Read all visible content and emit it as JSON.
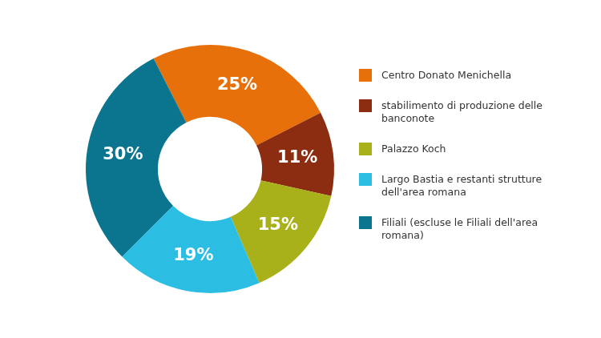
{
  "chart_data": {
    "type": "doughnut",
    "categories": [
      "Centro Donato Menichella",
      "stabilimento di produzione delle banconote",
      "Palazzo Koch",
      "Largo Bastia e restanti strutture dell'area romana",
      "Filiali (escluse le Filiali dell'area romana)"
    ],
    "values": [
      25,
      11,
      15,
      19,
      30
    ],
    "value_labels": [
      "25%",
      "11%",
      "15%",
      "19%",
      "30%"
    ],
    "colors": [
      "#e8700a",
      "#8c2c10",
      "#a8b01a",
      "#2cbde3",
      "#0b7590"
    ],
    "data_labels": true,
    "legend": "right"
  }
}
